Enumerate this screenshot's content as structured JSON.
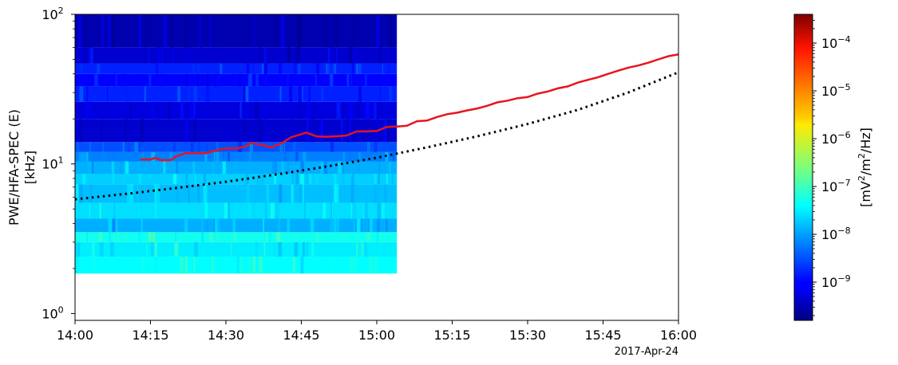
{
  "chart_data": {
    "type": "heatmap",
    "ylabel_line1": "PWE/HFA-SPEC (E)",
    "ylabel_line2": "[kHz]",
    "date_label": "2017-Apr-24",
    "x_ticks": [
      "14:00",
      "14:15",
      "14:30",
      "14:45",
      "15:00",
      "15:15",
      "15:30",
      "15:45",
      "16:00"
    ],
    "x_range_minutes": [
      0,
      120
    ],
    "y_scale": "log",
    "y_range_khz": [
      0.9,
      100
    ],
    "y_ticks": [
      {
        "base": "10",
        "exp": "0",
        "value": 1
      },
      {
        "base": "10",
        "exp": "1",
        "value": 10
      },
      {
        "base": "10",
        "exp": "2",
        "value": 100
      }
    ],
    "spectrogram": {
      "time_range": [
        "14:00",
        "15:04"
      ],
      "freq_range_khz": [
        1.85,
        100
      ],
      "bands": [
        {
          "f_low": 1.85,
          "f_high": 2.4,
          "log10_power": -7.4
        },
        {
          "f_low": 2.4,
          "f_high": 3.0,
          "log10_power": -7.5
        },
        {
          "f_low": 3.0,
          "f_high": 3.5,
          "log10_power": -7.3
        },
        {
          "f_low": 3.5,
          "f_high": 4.3,
          "log10_power": -7.9
        },
        {
          "f_low": 4.3,
          "f_high": 5.5,
          "log10_power": -7.6
        },
        {
          "f_low": 5.5,
          "f_high": 7.3,
          "log10_power": -7.8
        },
        {
          "f_low": 7.3,
          "f_high": 8.6,
          "log10_power": -7.7
        },
        {
          "f_low": 8.6,
          "f_high": 10.4,
          "log10_power": -7.9
        },
        {
          "f_low": 10.4,
          "f_high": 12.0,
          "log10_power": -8.2
        },
        {
          "f_low": 12.0,
          "f_high": 14.0,
          "log10_power": -8.5
        },
        {
          "f_low": 14.0,
          "f_high": 20.0,
          "log10_power": -9.3
        },
        {
          "f_low": 20.0,
          "f_high": 26.0,
          "log10_power": -9.2
        },
        {
          "f_low": 26.0,
          "f_high": 33.0,
          "log10_power": -8.8
        },
        {
          "f_low": 33.0,
          "f_high": 40.0,
          "log10_power": -9.0
        },
        {
          "f_low": 40.0,
          "f_high": 47.0,
          "log10_power": -8.8
        },
        {
          "f_low": 47.0,
          "f_high": 60.0,
          "log10_power": -9.3
        },
        {
          "f_low": 60.0,
          "f_high": 100.0,
          "log10_power": -9.5
        }
      ]
    },
    "series": [
      {
        "style": "solid",
        "color": "#e8141c",
        "x_minutes": [
          13,
          15,
          16,
          17,
          19,
          20,
          22,
          24,
          26,
          28,
          30,
          32,
          34,
          35,
          37,
          39,
          41,
          43,
          45,
          46,
          48,
          50,
          52,
          54,
          56,
          58,
          60,
          62,
          64,
          66,
          68,
          70,
          72,
          74,
          76,
          78,
          80,
          82,
          84,
          86,
          88,
          90,
          92,
          94,
          96,
          98,
          100,
          102,
          104,
          106,
          108,
          110,
          112,
          114,
          116,
          118,
          120
        ],
        "y_khz": [
          10.7,
          10.7,
          11.0,
          10.6,
          10.6,
          11.2,
          11.8,
          11.8,
          11.8,
          12.3,
          12.7,
          12.7,
          13.1,
          13.8,
          13.4,
          12.9,
          13.7,
          15.1,
          15.8,
          16.2,
          15.3,
          15.2,
          15.3,
          15.5,
          16.5,
          16.5,
          16.6,
          17.7,
          17.8,
          18.0,
          19.3,
          19.5,
          20.6,
          21.5,
          22.0,
          22.8,
          23.5,
          24.5,
          25.8,
          26.5,
          27.5,
          28.0,
          29.5,
          30.5,
          32.0,
          33.0,
          35.0,
          36.5,
          38.0,
          40.0,
          42.0,
          44.0,
          45.5,
          47.5,
          50.0,
          52.5,
          54.0
        ]
      },
      {
        "style": "dotted",
        "color": "#000000",
        "x_minutes": [
          0,
          10,
          20,
          30,
          40,
          50,
          60,
          70,
          80,
          90,
          100,
          110,
          120
        ],
        "y_khz": [
          5.8,
          6.3,
          6.9,
          7.6,
          8.5,
          9.6,
          11.0,
          12.9,
          15.3,
          18.5,
          23.0,
          30.0,
          41.0
        ]
      }
    ],
    "colorbar": {
      "label_prefix": "[mV",
      "label_sup1": "2",
      "label_mid": "/m",
      "label_sup2": "2",
      "label_suffix": "/Hz]",
      "scale": "log",
      "range_log10": [
        -9.8,
        -3.4
      ],
      "colormap": "jet",
      "ticks": [
        {
          "base": "10",
          "exp": "−9",
          "value": -9
        },
        {
          "base": "10",
          "exp": "−8",
          "value": -8
        },
        {
          "base": "10",
          "exp": "−7",
          "value": -7
        },
        {
          "base": "10",
          "exp": "−6",
          "value": -6
        },
        {
          "base": "10",
          "exp": "−5",
          "value": -5
        },
        {
          "base": "10",
          "exp": "−4",
          "value": -4
        }
      ]
    }
  }
}
